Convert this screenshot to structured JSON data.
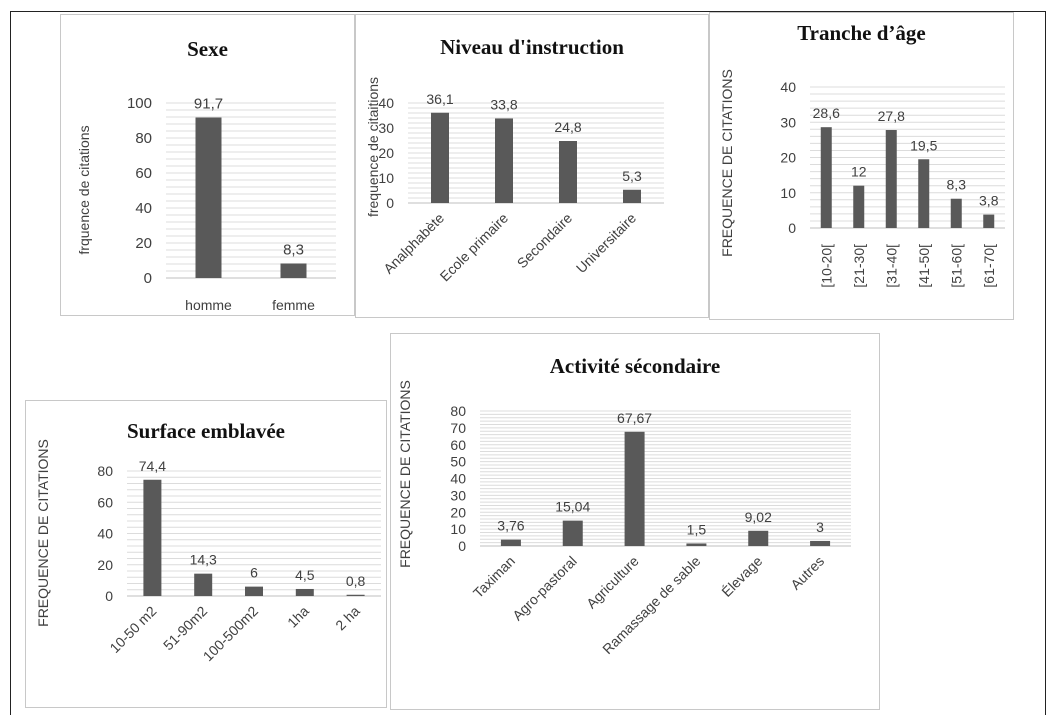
{
  "chart_data": [
    {
      "id": "sexe",
      "type": "bar",
      "title": "Sexe",
      "ylabel": "frquence de citations",
      "categories": [
        "homme",
        "femme"
      ],
      "values": [
        91.7,
        8.3
      ],
      "value_labels": [
        "91,7",
        "8,3"
      ],
      "ylim": [
        0,
        100
      ],
      "yticks": [
        0,
        20,
        40,
        60,
        80,
        100
      ],
      "grid": true,
      "bar_color": "#595959"
    },
    {
      "id": "niveau",
      "type": "bar",
      "title": "Niveau d'instruction",
      "ylabel": "frequence de citaitions",
      "categories": [
        "Analphabète",
        "Ecole primaire",
        "Secondaire",
        "Universitaire"
      ],
      "values": [
        36.1,
        33.8,
        24.8,
        5.3
      ],
      "value_labels": [
        "36,1",
        "33,8",
        "24,8",
        "5,3"
      ],
      "ylim": [
        0,
        40
      ],
      "yticks": [
        0,
        10,
        20,
        30,
        40
      ],
      "grid": true,
      "bar_color": "#595959"
    },
    {
      "id": "tranche",
      "type": "bar",
      "title": "Tranche d’âge",
      "ylabel": "FREQUENCE DE CITATIONS",
      "categories": [
        "[10-20[",
        "[21-30[",
        "[31-40[",
        "[41-50[",
        "[51-60[",
        "[61-70["
      ],
      "values": [
        28.6,
        12,
        27.8,
        19.5,
        8.3,
        3.8
      ],
      "value_labels": [
        "28,6",
        "12",
        "27,8",
        "19,5",
        "8,3",
        "3,8"
      ],
      "ylim": [
        0,
        40
      ],
      "yticks": [
        0,
        10,
        20,
        30,
        40
      ],
      "grid": true,
      "bar_color": "#595959"
    },
    {
      "id": "surface",
      "type": "bar",
      "title": "Surface emblavée",
      "ylabel": "FREQUENCE DE CITATIONS",
      "categories": [
        "10-50 m2",
        "51-90m2",
        "100-500m2",
        "1ha",
        "2 ha"
      ],
      "values": [
        74.4,
        14.3,
        6,
        4.5,
        0.8
      ],
      "value_labels": [
        "74,4",
        "14,3",
        "6",
        "4,5",
        "0,8"
      ],
      "ylim": [
        0,
        80
      ],
      "yticks": [
        0,
        20,
        40,
        60,
        80
      ],
      "grid": true,
      "bar_color": "#595959"
    },
    {
      "id": "activite",
      "type": "bar",
      "title": "Activité sécondaire",
      "ylabel": "FREQUENCE DE CITATIONS",
      "categories": [
        "Taximan",
        "Agro-pastoral",
        "Agriculture",
        "Ramassage de sable",
        "Élevage",
        "Autres"
      ],
      "values": [
        3.76,
        15.04,
        67.67,
        1.5,
        9.02,
        3
      ],
      "value_labels": [
        "3,76",
        "15,04",
        "67,67",
        "1,5",
        "9,02",
        "3"
      ],
      "ylim": [
        0,
        80
      ],
      "yticks": [
        0,
        10,
        20,
        30,
        40,
        50,
        60,
        70,
        80
      ],
      "grid": true,
      "bar_color": "#595959"
    }
  ]
}
